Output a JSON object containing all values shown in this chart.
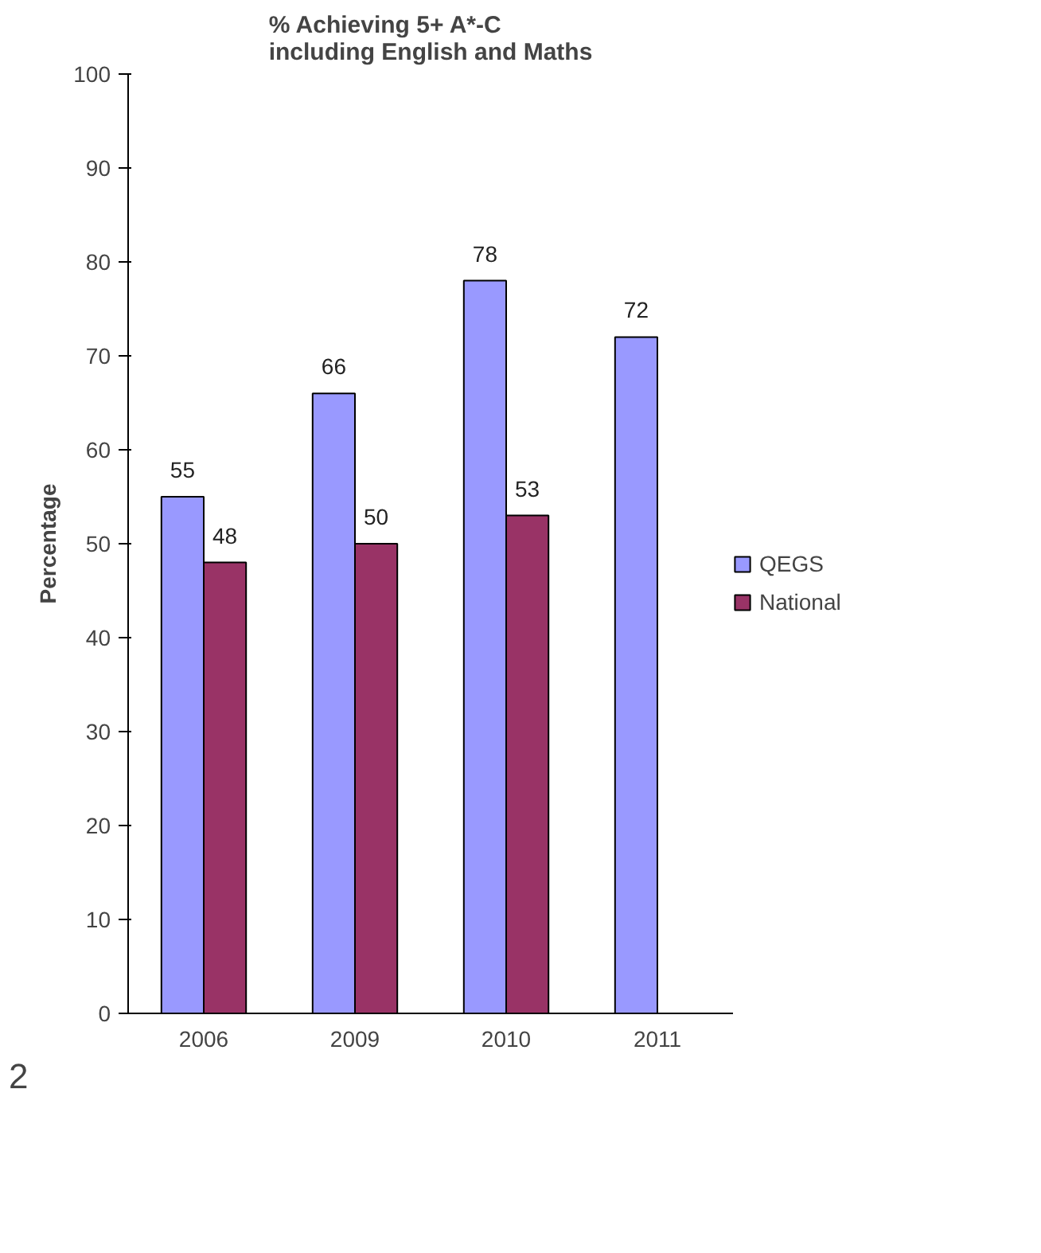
{
  "chart_data": {
    "type": "bar",
    "title": "% Achieving 5+ A*-C\nincluding English and Maths",
    "ylabel": "Percentage",
    "categories": [
      "2006",
      "2009",
      "2010",
      "2011"
    ],
    "series": [
      {
        "name": "QEGS",
        "color": "#9999ff",
        "values": [
          55,
          66,
          78,
          72
        ]
      },
      {
        "name": "National",
        "color": "#993366",
        "values": [
          48,
          50,
          53,
          null
        ]
      }
    ],
    "ylim": [
      0,
      100
    ],
    "yticks": [
      0,
      10,
      20,
      30,
      40,
      50,
      60,
      70,
      80,
      90,
      100
    ],
    "grid": false,
    "legend": "right",
    "data_labels": true,
    "annotations": [
      "2"
    ]
  }
}
